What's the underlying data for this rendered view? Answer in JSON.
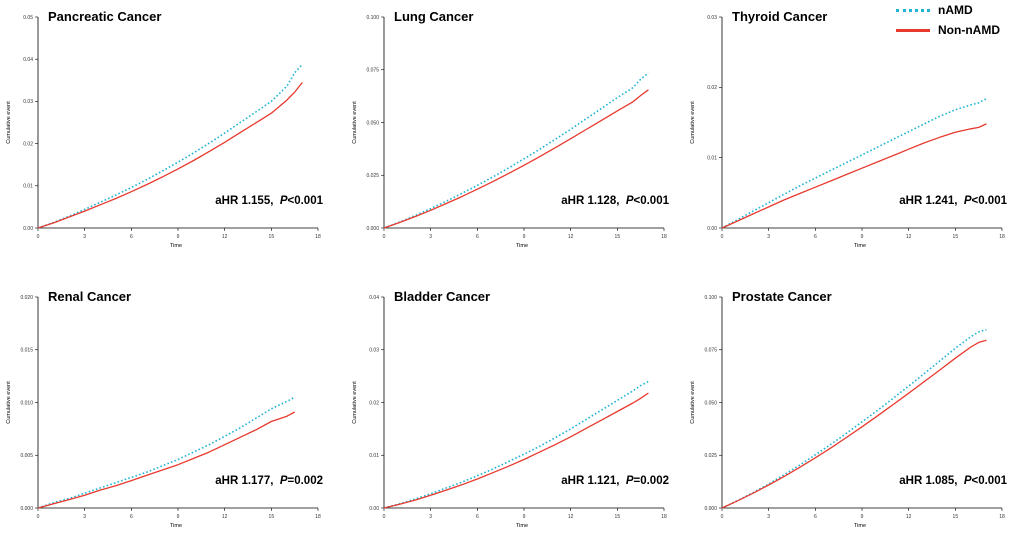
{
  "legend": {
    "items": [
      {
        "label": "nAMD",
        "color": "#1fb3d6",
        "style": "dotted"
      },
      {
        "label": "Non-nAMD",
        "color": "#e8392d",
        "style": "solid"
      }
    ]
  },
  "chart_data": [
    {
      "type": "line",
      "title": "Pancreatic Cancer",
      "xlabel": "Time",
      "ylabel": "Cumulative event",
      "xlim": [
        0,
        18
      ],
      "ylim": [
        0,
        0.05
      ],
      "xticks": [
        "0",
        "3",
        "6",
        "9",
        "12",
        "15",
        "18"
      ],
      "yticks": [
        "0.00",
        "0.01",
        "0.02",
        "0.03",
        "0.04",
        "0.05"
      ],
      "annotation": {
        "prefix": "aHR 1.155,",
        "p_label": "P",
        "p_value": "<0.001"
      },
      "series": [
        {
          "name": "nAMD",
          "x": [
            0,
            1,
            2,
            3,
            4,
            5,
            6,
            7,
            8,
            9,
            10,
            11,
            12,
            13,
            14,
            15,
            16,
            16.5,
            17
          ],
          "y": [
            0,
            0.0013,
            0.0028,
            0.0044,
            0.0061,
            0.0078,
            0.0096,
            0.0115,
            0.0135,
            0.0156,
            0.0178,
            0.0201,
            0.0225,
            0.025,
            0.0275,
            0.03,
            0.0336,
            0.0368,
            0.0388
          ]
        },
        {
          "name": "Non-nAMD",
          "x": [
            0,
            1,
            2,
            3,
            4,
            5,
            6,
            7,
            8,
            9,
            10,
            11,
            12,
            13,
            14,
            15,
            16,
            16.5,
            17
          ],
          "y": [
            0,
            0.0012,
            0.0026,
            0.004,
            0.0055,
            0.007,
            0.0086,
            0.0103,
            0.0121,
            0.014,
            0.016,
            0.0181,
            0.0203,
            0.0226,
            0.0249,
            0.0272,
            0.0303,
            0.0322,
            0.0345
          ]
        }
      ]
    },
    {
      "type": "line",
      "title": "Lung Cancer",
      "xlabel": "Time",
      "ylabel": "Cumulative event",
      "xlim": [
        0,
        18
      ],
      "ylim": [
        0,
        0.1
      ],
      "xticks": [
        "0",
        "3",
        "6",
        "9",
        "12",
        "15",
        "18"
      ],
      "yticks": [
        "0.000",
        "0.025",
        "0.050",
        "0.075",
        "0.100"
      ],
      "annotation": {
        "prefix": "aHR 1.128,",
        "p_label": "P",
        "p_value": "<0.001"
      },
      "series": [
        {
          "name": "nAMD",
          "x": [
            0,
            1,
            2,
            3,
            4,
            5,
            6,
            7,
            8,
            9,
            10,
            11,
            12,
            13,
            14,
            15,
            16,
            16.5,
            17
          ],
          "y": [
            0,
            0.0028,
            0.0059,
            0.0092,
            0.0127,
            0.0164,
            0.0202,
            0.0242,
            0.0284,
            0.0328,
            0.0373,
            0.042,
            0.0468,
            0.0518,
            0.0568,
            0.0618,
            0.0665,
            0.0705,
            0.0735
          ]
        },
        {
          "name": "Non-nAMD",
          "x": [
            0,
            1,
            2,
            3,
            4,
            5,
            6,
            7,
            8,
            9,
            10,
            11,
            12,
            13,
            14,
            15,
            16,
            16.5,
            17
          ],
          "y": [
            0,
            0.0026,
            0.0054,
            0.0084,
            0.0116,
            0.0149,
            0.0184,
            0.022,
            0.0258,
            0.0297,
            0.0338,
            0.038,
            0.0423,
            0.0467,
            0.0511,
            0.0555,
            0.0598,
            0.0628,
            0.0655
          ]
        }
      ]
    },
    {
      "type": "line",
      "title": "Thyroid Cancer",
      "xlabel": "Time",
      "ylabel": "Cumulative event",
      "xlim": [
        0,
        18
      ],
      "ylim": [
        0,
        0.03
      ],
      "xticks": [
        "0",
        "3",
        "6",
        "9",
        "12",
        "15",
        "18"
      ],
      "yticks": [
        "0.00",
        "0.01",
        "0.02",
        "0.03"
      ],
      "annotation": {
        "prefix": "aHR 1.241,",
        "p_label": "P",
        "p_value": "<0.001"
      },
      "series": [
        {
          "name": "nAMD",
          "x": [
            0,
            1,
            2,
            3,
            4,
            5,
            6,
            7,
            8,
            9,
            10,
            11,
            12,
            13,
            14,
            15,
            16,
            16.5,
            17
          ],
          "y": [
            0,
            0.0012,
            0.0024,
            0.0036,
            0.0048,
            0.006,
            0.0071,
            0.0082,
            0.0093,
            0.0104,
            0.0115,
            0.0126,
            0.0137,
            0.0148,
            0.0159,
            0.0168,
            0.0175,
            0.0178,
            0.0184
          ]
        },
        {
          "name": "Non-nAMD",
          "x": [
            0,
            1,
            2,
            3,
            4,
            5,
            6,
            7,
            8,
            9,
            10,
            11,
            12,
            13,
            14,
            15,
            16,
            16.5,
            17
          ],
          "y": [
            0,
            0.001,
            0.002,
            0.003,
            0.004,
            0.0049,
            0.0058,
            0.0067,
            0.0076,
            0.0085,
            0.0094,
            0.0103,
            0.0112,
            0.0121,
            0.0129,
            0.0136,
            0.0141,
            0.0143,
            0.0148
          ]
        }
      ]
    },
    {
      "type": "line",
      "title": "Renal Cancer",
      "xlabel": "Time",
      "ylabel": "Cumulative event",
      "xlim": [
        0,
        18
      ],
      "ylim": [
        0,
        0.02
      ],
      "xticks": [
        "0",
        "3",
        "6",
        "9",
        "12",
        "15",
        "18"
      ],
      "yticks": [
        "0.000",
        "0.005",
        "0.010",
        "0.015",
        "0.020"
      ],
      "annotation": {
        "prefix": "aHR 1.177,",
        "p_label": "P",
        "p_value": "=0.002"
      },
      "series": [
        {
          "name": "nAMD",
          "x": [
            0,
            1,
            2,
            3,
            4,
            5,
            6,
            7,
            8,
            9,
            10,
            11,
            12,
            13,
            14,
            15,
            16,
            16.5
          ],
          "y": [
            0,
            0.0005,
            0.0009,
            0.0014,
            0.0019,
            0.0024,
            0.0029,
            0.0034,
            0.004,
            0.0046,
            0.0053,
            0.006,
            0.0068,
            0.0076,
            0.0085,
            0.0094,
            0.0101,
            0.0105
          ]
        },
        {
          "name": "Non-nAMD",
          "x": [
            0,
            1,
            2,
            3,
            4,
            5,
            6,
            7,
            8,
            9,
            10,
            11,
            12,
            13,
            14,
            15,
            16,
            16.5
          ],
          "y": [
            0,
            0.0004,
            0.0008,
            0.0012,
            0.0017,
            0.0021,
            0.0026,
            0.0031,
            0.0036,
            0.0041,
            0.0047,
            0.0053,
            0.006,
            0.0067,
            0.0074,
            0.0082,
            0.0087,
            0.0091
          ]
        }
      ]
    },
    {
      "type": "line",
      "title": "Bladder Cancer",
      "xlabel": "Time",
      "ylabel": "Cumulative event",
      "xlim": [
        0,
        18
      ],
      "ylim": [
        0,
        0.04
      ],
      "xticks": [
        "0",
        "3",
        "6",
        "9",
        "12",
        "15",
        "18"
      ],
      "yticks": [
        "0.00",
        "0.01",
        "0.02",
        "0.03",
        "0.04"
      ],
      "annotation": {
        "prefix": "aHR 1.121,",
        "p_label": "P",
        "p_value": "=0.002"
      },
      "series": [
        {
          "name": "nAMD",
          "x": [
            0,
            1,
            2,
            3,
            4,
            5,
            6,
            7,
            8,
            9,
            10,
            11,
            12,
            13,
            14,
            15,
            16,
            16.5,
            17
          ],
          "y": [
            0,
            0.0008,
            0.0017,
            0.0027,
            0.0038,
            0.0049,
            0.0061,
            0.0074,
            0.0088,
            0.0102,
            0.0117,
            0.0133,
            0.015,
            0.0168,
            0.0186,
            0.0204,
            0.0222,
            0.0232,
            0.024
          ]
        },
        {
          "name": "Non-nAMD",
          "x": [
            0,
            1,
            2,
            3,
            4,
            5,
            6,
            7,
            8,
            9,
            10,
            11,
            12,
            13,
            14,
            15,
            16,
            16.5,
            17
          ],
          "y": [
            0,
            0.0007,
            0.0015,
            0.0024,
            0.0034,
            0.0044,
            0.0055,
            0.0067,
            0.0079,
            0.0092,
            0.0106,
            0.012,
            0.0135,
            0.0151,
            0.0167,
            0.0183,
            0.0199,
            0.0208,
            0.0218
          ]
        }
      ]
    },
    {
      "type": "line",
      "title": "Prostate Cancer",
      "xlabel": "Time",
      "ylabel": "Cumulative event",
      "xlim": [
        0,
        18
      ],
      "ylim": [
        0,
        0.1
      ],
      "xticks": [
        "0",
        "3",
        "6",
        "9",
        "12",
        "15",
        "18"
      ],
      "yticks": [
        "0.000",
        "0.025",
        "0.050",
        "0.075",
        "0.100"
      ],
      "annotation": {
        "prefix": "aHR 1.085,",
        "p_label": "P",
        "p_value": "<0.001"
      },
      "series": [
        {
          "name": "nAMD",
          "x": [
            0,
            1,
            2,
            3,
            4,
            5,
            6,
            7,
            8,
            9,
            10,
            11,
            12,
            13,
            14,
            15,
            16,
            16.5,
            17
          ],
          "y": [
            0,
            0.0035,
            0.0073,
            0.0114,
            0.0158,
            0.0204,
            0.0252,
            0.0302,
            0.0354,
            0.0408,
            0.0463,
            0.052,
            0.0578,
            0.0637,
            0.0697,
            0.0757,
            0.0812,
            0.0835,
            0.0845
          ]
        },
        {
          "name": "Non-nAMD",
          "x": [
            0,
            1,
            2,
            3,
            4,
            5,
            6,
            7,
            8,
            9,
            10,
            11,
            12,
            13,
            14,
            15,
            16,
            16.5,
            17
          ],
          "y": [
            0,
            0.0034,
            0.007,
            0.0109,
            0.015,
            0.0193,
            0.0238,
            0.0285,
            0.0334,
            0.0385,
            0.0437,
            0.049,
            0.0544,
            0.0599,
            0.0654,
            0.071,
            0.0763,
            0.0785,
            0.0795
          ]
        }
      ]
    }
  ]
}
